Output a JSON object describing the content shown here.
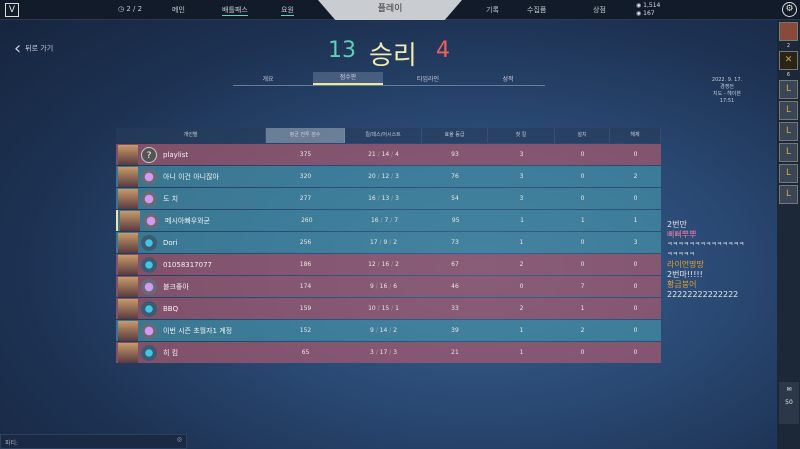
{
  "topbar": {
    "logo": "V",
    "timer": "2 / 2",
    "nav": [
      "메인",
      "배틀패스",
      "요원"
    ],
    "play": "플레이",
    "nav_right": [
      "기록",
      "수집품",
      "상점"
    ],
    "vp": "1,514",
    "rp": "167"
  },
  "back_label": "뒤로 가기",
  "score": {
    "ally": "13",
    "result": "승리",
    "enemy": "4"
  },
  "tabs": [
    "개요",
    "점수판",
    "타임라인",
    "성적"
  ],
  "match_info": {
    "date": "2022. 9. 17.",
    "mode": "경쟁전",
    "map": "지도 - 헤이븐",
    "time": "17:51"
  },
  "table": {
    "headers": [
      "개인별",
      "평균 전투 점수",
      "킬/데스/어시스트",
      "효율 등급",
      "첫 킬",
      "설치",
      "해체"
    ],
    "rows": [
      {
        "team": "red",
        "rank": "unranked",
        "name": "playlist",
        "acs": "375",
        "k": "21",
        "d": "14",
        "a": "4",
        "eff": "93",
        "fk": "3",
        "plant": "0",
        "defuse": "0"
      },
      {
        "team": "teal",
        "rank": "amethyst",
        "name": "아니 이건 아니잖아",
        "acs": "320",
        "k": "20",
        "d": "12",
        "a": "3",
        "eff": "76",
        "fk": "3",
        "plant": "0",
        "defuse": "2"
      },
      {
        "team": "teal",
        "rank": "amethyst",
        "name": "도 치",
        "acs": "277",
        "k": "16",
        "d": "13",
        "a": "3",
        "eff": "54",
        "fk": "3",
        "plant": "0",
        "defuse": "0"
      },
      {
        "team": "teal",
        "rank": "amethyst",
        "name": "메시아빠우와균",
        "acs": "260",
        "k": "16",
        "d": "7",
        "a": "7",
        "eff": "95",
        "fk": "1",
        "plant": "1",
        "defuse": "1"
      },
      {
        "team": "teal",
        "rank": "diamond",
        "name": "Dori",
        "acs": "256",
        "k": "17",
        "d": "9",
        "a": "2",
        "eff": "73",
        "fk": "1",
        "plant": "0",
        "defuse": "3"
      },
      {
        "team": "red",
        "rank": "diamond",
        "name": "01058317077",
        "acs": "186",
        "k": "12",
        "d": "16",
        "a": "2",
        "eff": "67",
        "fk": "2",
        "plant": "0",
        "defuse": "0"
      },
      {
        "team": "red",
        "rank": "amethyst",
        "name": "블크좋아",
        "acs": "174",
        "k": "9",
        "d": "16",
        "a": "6",
        "eff": "46",
        "fk": "0",
        "plant": "7",
        "defuse": "0"
      },
      {
        "team": "red",
        "rank": "diamond",
        "name": "BBQ",
        "acs": "159",
        "k": "10",
        "d": "15",
        "a": "1",
        "eff": "33",
        "fk": "2",
        "plant": "1",
        "defuse": "0"
      },
      {
        "team": "teal",
        "rank": "amethyst",
        "name": "이번 시즌 초월자1 계정",
        "acs": "152",
        "k": "9",
        "d": "14",
        "a": "2",
        "eff": "39",
        "fk": "1",
        "plant": "2",
        "defuse": "0"
      },
      {
        "team": "red",
        "rank": "diamond",
        "name": "히 킴",
        "acs": "65",
        "k": "3",
        "d": "17",
        "a": "3",
        "eff": "21",
        "fk": "1",
        "plant": "0",
        "defuse": "0"
      }
    ]
  },
  "chat": [
    {
      "text": "2번만",
      "color": "#e8e8e8"
    },
    {
      "text": "삐삐뿌뿌",
      "color": "#f27aa8"
    },
    {
      "text": "ㅋㅋㅋㅋㅋㅋㅋㅋㅋㅋㅋㅋㅋㅋ",
      "color": "#e8e8e8"
    },
    {
      "text": "ㅋㅋㅋㅋㅋ",
      "color": "#e8e8e8"
    },
    {
      "text": "라이언땅땅",
      "color": "#e0a030"
    },
    {
      "text": "2번마!!!!!",
      "color": "#e8e8e8"
    },
    {
      "text": "황금붕어",
      "color": "#e0a030"
    },
    {
      "text": "22222222222222",
      "color": "#e8e8e8"
    }
  ],
  "side": {
    "counts": [
      "2",
      "6"
    ],
    "mail_count": "50"
  },
  "party_placeholder": "파티:"
}
